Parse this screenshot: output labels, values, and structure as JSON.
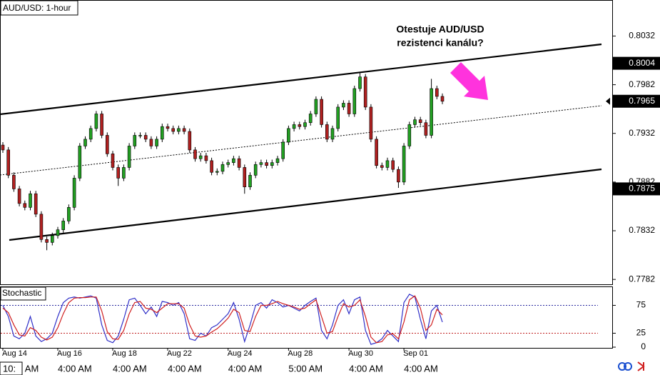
{
  "chart_data": [
    {
      "type": "candlestick",
      "title": "AUD/USD: 1-hour",
      "annotation": [
        "Otestuje AUD/USD",
        "rezistenci kanálu?"
      ],
      "dates": [
        "Aug 14",
        null,
        null,
        null,
        null,
        null,
        null,
        null,
        null,
        null,
        "Aug 16",
        null,
        null,
        null,
        null,
        null,
        null,
        null,
        null,
        null,
        "Aug 18",
        null,
        null,
        null,
        null,
        null,
        null,
        null,
        null,
        null,
        "Aug 22",
        null,
        null,
        null,
        null,
        null,
        null,
        null,
        null,
        null,
        null,
        "Aug 24",
        null,
        null,
        null,
        null,
        null,
        null,
        null,
        null,
        null,
        null,
        "Aug 28",
        null,
        null,
        null,
        null,
        null,
        null,
        null,
        null,
        null,
        null,
        "Aug 30",
        null,
        null,
        null,
        null,
        null,
        null,
        null,
        null,
        null,
        "Sep 01",
        null,
        null,
        null,
        null,
        null,
        null,
        null
      ],
      "times": [
        "10:",
        null,
        null,
        null,
        "AM",
        null,
        null,
        null,
        null,
        null,
        "4:00 AM",
        null,
        null,
        null,
        null,
        null,
        null,
        null,
        null,
        null,
        "4:00 AM",
        null,
        null,
        null,
        null,
        null,
        null,
        null,
        null,
        null,
        "4:00 AM",
        null,
        null,
        null,
        null,
        null,
        null,
        null,
        null,
        null,
        null,
        "4:00 AM",
        null,
        null,
        null,
        null,
        null,
        null,
        null,
        null,
        null,
        null,
        "5:00 AM",
        null,
        null,
        null,
        null,
        null,
        null,
        null,
        null,
        null,
        null,
        "4:00 AM",
        null,
        null,
        null,
        null,
        null,
        null,
        null,
        null,
        null,
        "4:00 AM",
        null,
        null,
        null,
        null,
        null,
        null,
        null
      ],
      "open": [
        0.792,
        0.7915,
        0.7889,
        0.7875,
        0.786,
        0.7856,
        0.787,
        0.7849,
        0.7823,
        0.782,
        0.7827,
        0.7833,
        0.7842,
        0.7856,
        0.7886,
        0.7919,
        0.7926,
        0.7937,
        0.7952,
        0.793,
        0.7911,
        0.7897,
        0.7886,
        0.7897,
        0.7919,
        0.793,
        0.793,
        0.7926,
        0.7919,
        0.7926,
        0.7939,
        0.7937,
        0.7934,
        0.7937,
        0.7934,
        0.7915,
        0.7906,
        0.7909,
        0.7904,
        0.7892,
        0.7893,
        0.79,
        0.7902,
        0.7906,
        0.7897,
        0.7877,
        0.7889,
        0.79,
        0.7902,
        0.7899,
        0.7902,
        0.7906,
        0.7923,
        0.7937,
        0.7941,
        0.7939,
        0.7943,
        0.7952,
        0.7967,
        0.7941,
        0.7926,
        0.7937,
        0.7959,
        0.7963,
        0.7952,
        0.7978,
        0.799,
        0.7959,
        0.7926,
        0.7899,
        0.7897,
        0.7904,
        0.7895,
        0.7882,
        0.7919,
        0.7941,
        0.7946,
        0.7943,
        0.793,
        0.7978,
        0.797
      ],
      "high": [
        0.7923,
        0.7918,
        0.7892,
        0.7878,
        0.7863,
        0.7873,
        0.7873,
        0.7852,
        0.7826,
        0.783,
        0.7836,
        0.7845,
        0.7859,
        0.7889,
        0.7922,
        0.7929,
        0.794,
        0.7955,
        0.7955,
        0.7933,
        0.7914,
        0.79,
        0.79,
        0.7922,
        0.7933,
        0.7933,
        0.7933,
        0.7929,
        0.7929,
        0.7942,
        0.7942,
        0.794,
        0.794,
        0.794,
        0.7937,
        0.7918,
        0.7912,
        0.7912,
        0.7907,
        0.7896,
        0.7903,
        0.7905,
        0.7909,
        0.7909,
        0.79,
        0.7892,
        0.7903,
        0.7905,
        0.7905,
        0.7905,
        0.7909,
        0.7926,
        0.794,
        0.7944,
        0.7944,
        0.7946,
        0.7955,
        0.797,
        0.797,
        0.7944,
        0.794,
        0.7962,
        0.7966,
        0.7966,
        0.7981,
        0.7995,
        0.7993,
        0.7962,
        0.7929,
        0.7902,
        0.7907,
        0.7907,
        0.7898,
        0.7922,
        0.7944,
        0.7949,
        0.7949,
        0.7946,
        0.7988,
        0.7981,
        0.7973
      ],
      "low": [
        0.7912,
        0.7886,
        0.7872,
        0.7857,
        0.7853,
        0.7853,
        0.7846,
        0.782,
        0.7812,
        0.7817,
        0.7824,
        0.783,
        0.7839,
        0.7853,
        0.7883,
        0.7916,
        0.7923,
        0.7934,
        0.7927,
        0.7908,
        0.7894,
        0.7878,
        0.7883,
        0.7894,
        0.7916,
        0.7927,
        0.7923,
        0.7916,
        0.7916,
        0.7923,
        0.7934,
        0.7931,
        0.7931,
        0.7931,
        0.7912,
        0.7903,
        0.7903,
        0.7901,
        0.7889,
        0.7889,
        0.789,
        0.7897,
        0.7899,
        0.7894,
        0.787,
        0.7874,
        0.7886,
        0.7897,
        0.7896,
        0.7896,
        0.7899,
        0.7903,
        0.792,
        0.7934,
        0.7936,
        0.7936,
        0.794,
        0.7949,
        0.7938,
        0.7923,
        0.7923,
        0.7934,
        0.7956,
        0.7949,
        0.7949,
        0.7975,
        0.7956,
        0.7923,
        0.7896,
        0.7894,
        0.7894,
        0.7892,
        0.7876,
        0.7879,
        0.7916,
        0.7938,
        0.794,
        0.7927,
        0.7927,
        0.7967,
        0.7962
      ],
      "close": [
        0.7915,
        0.7889,
        0.7875,
        0.786,
        0.7856,
        0.787,
        0.7849,
        0.7823,
        0.782,
        0.7827,
        0.7833,
        0.7842,
        0.7856,
        0.7886,
        0.7919,
        0.7926,
        0.7937,
        0.7952,
        0.793,
        0.7911,
        0.7897,
        0.7886,
        0.7897,
        0.7919,
        0.793,
        0.793,
        0.7926,
        0.7919,
        0.7926,
        0.7939,
        0.7937,
        0.7934,
        0.7937,
        0.7934,
        0.7915,
        0.7906,
        0.7909,
        0.7904,
        0.7892,
        0.7893,
        0.79,
        0.7902,
        0.7906,
        0.7897,
        0.7877,
        0.7889,
        0.79,
        0.7902,
        0.7899,
        0.7902,
        0.7906,
        0.7923,
        0.7937,
        0.7941,
        0.7939,
        0.7943,
        0.7952,
        0.7967,
        0.7941,
        0.7926,
        0.7937,
        0.7959,
        0.7963,
        0.7952,
        0.7978,
        0.799,
        0.7959,
        0.7926,
        0.7899,
        0.7897,
        0.7904,
        0.7895,
        0.7882,
        0.7919,
        0.7941,
        0.7946,
        0.7943,
        0.793,
        0.7978,
        0.797,
        0.7965
      ],
      "up_color": "#22a022",
      "down_color": "#b02020",
      "wick_color": "#000000",
      "ylim": [
        0.7777,
        0.8069
      ],
      "yticks": [
        0.8032,
        0.7982,
        0.7932,
        0.7882,
        0.7832,
        0.7782
      ],
      "price_labels": [
        0.8004,
        0.7965,
        0.7875
      ]
    },
    {
      "type": "line",
      "title": "Stochastic",
      "series": [
        {
          "color": "#3030c8",
          "values": [
            75,
            55,
            20,
            15,
            25,
            55,
            20,
            10,
            15,
            25,
            55,
            80,
            88,
            90,
            88,
            90,
            92,
            88,
            40,
            12,
            8,
            20,
            50,
            85,
            88,
            75,
            60,
            72,
            55,
            82,
            80,
            75,
            80,
            60,
            15,
            12,
            25,
            20,
            35,
            40,
            50,
            60,
            80,
            50,
            10,
            40,
            75,
            80,
            70,
            85,
            80,
            72,
            75,
            70,
            65,
            75,
            82,
            88,
            30,
            15,
            40,
            75,
            85,
            60,
            85,
            90,
            30,
            5,
            8,
            15,
            30,
            20,
            10,
            80,
            95,
            90,
            50,
            15,
            65,
            75,
            45
          ]
        },
        {
          "color": "#d02020",
          "values": [
            70,
            62,
            40,
            22,
            20,
            35,
            30,
            18,
            13,
            18,
            35,
            60,
            80,
            88,
            89,
            89,
            90,
            90,
            65,
            28,
            15,
            14,
            30,
            60,
            80,
            82,
            70,
            68,
            62,
            70,
            78,
            78,
            78,
            70,
            40,
            20,
            18,
            20,
            27,
            33,
            42,
            52,
            68,
            62,
            30,
            28,
            55,
            75,
            75,
            78,
            82,
            78,
            75,
            72,
            68,
            70,
            78,
            85,
            55,
            25,
            28,
            55,
            78,
            72,
            75,
            85,
            55,
            18,
            8,
            10,
            22,
            24,
            15,
            45,
            85,
            92,
            70,
            30,
            40,
            68,
            58
          ]
        }
      ],
      "levels": [
        {
          "value": 75,
          "color": "#2a2aa0"
        },
        {
          "value": 25,
          "color": "#c02020"
        }
      ],
      "ylim": [
        0,
        100
      ],
      "yticks": [
        75,
        25,
        0
      ]
    }
  ]
}
